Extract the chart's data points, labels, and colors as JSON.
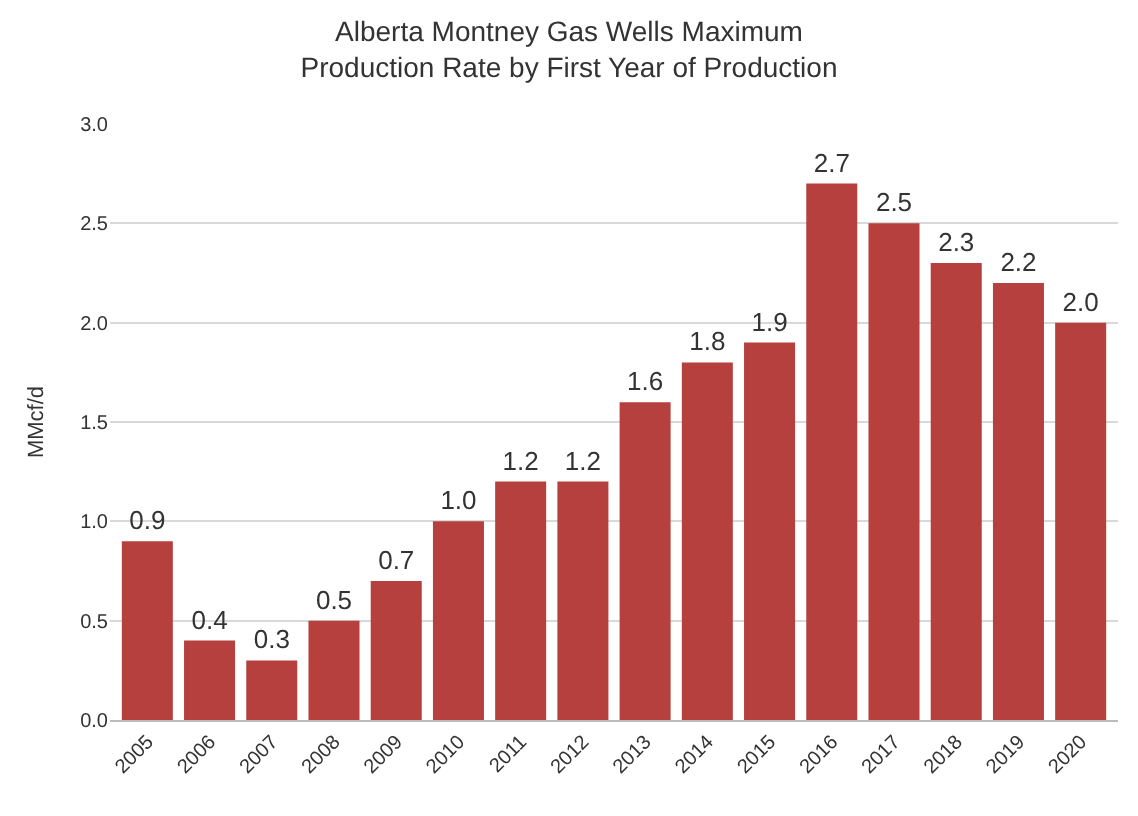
{
  "chart_data": {
    "type": "bar",
    "title": "Alberta Montney Gas Wells Maximum\nProduction Rate by First Year of Production",
    "ylabel": "MMcf/d",
    "categories": [
      "2005",
      "2006",
      "2007",
      "2008",
      "2009",
      "2010",
      "2011",
      "2012",
      "2013",
      "2014",
      "2015",
      "2016",
      "2017",
      "2018",
      "2019",
      "2020"
    ],
    "values": [
      0.9,
      0.4,
      0.3,
      0.5,
      0.7,
      1.0,
      1.2,
      1.2,
      1.6,
      1.8,
      1.9,
      2.7,
      2.5,
      2.3,
      2.2,
      2.0
    ],
    "value_labels": [
      "0.9",
      "0.4",
      "0.3",
      "0.5",
      "0.7",
      "1.0",
      "1.2",
      "1.2",
      "1.6",
      "1.8",
      "1.9",
      "2.7",
      "2.5",
      "2.3",
      "2.2",
      "2.0"
    ],
    "color": "#b5403d",
    "ylim": [
      0,
      3
    ],
    "yticks": [
      {
        "value": 0,
        "label": "0.0"
      },
      {
        "value": 0.5,
        "label": "0.5"
      },
      {
        "value": 1,
        "label": "1.0"
      },
      {
        "value": 1.5,
        "label": "1.5"
      },
      {
        "value": 2,
        "label": "2.0"
      },
      {
        "value": 2.5,
        "label": "2.5"
      },
      {
        "value": 3,
        "label": "3.0"
      }
    ],
    "grid": "y",
    "legend": false
  }
}
